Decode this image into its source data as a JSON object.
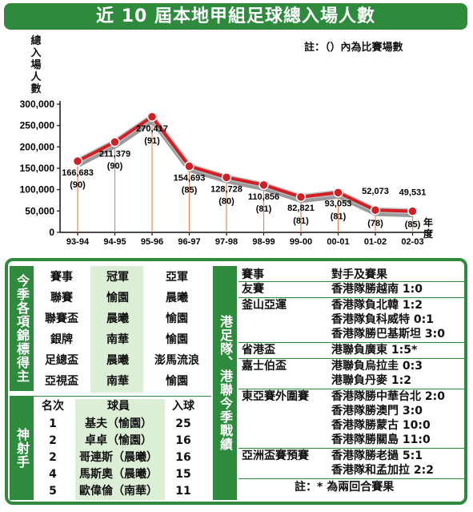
{
  "title": "近 10 屆本地甲組足球總入場人數",
  "chart": {
    "ylabel": "總入場人數",
    "note": "註：（）內為比賽場數",
    "xaxis_label": "年度"
  },
  "chart_data": {
    "type": "line",
    "title": "近 10 屆本地甲組足球總入場人數",
    "ylabel": "總入場人數",
    "xlabel": "年度",
    "ylim": [
      0,
      300000
    ],
    "yticks": [
      "300,000",
      "250,000",
      "200,000",
      "150,000",
      "100,000",
      "50,000",
      "0"
    ],
    "categories": [
      "93-94",
      "94-95",
      "95-96",
      "96-97",
      "97-98",
      "98-99",
      "99-00",
      "00-01",
      "01-02",
      "02-03"
    ],
    "values": [
      166683,
      211379,
      270417,
      154693,
      128728,
      110856,
      82821,
      93053,
      52073,
      49531
    ],
    "value_labels": [
      "166,683",
      "211,379",
      "270,417",
      "154,693",
      "128,728",
      "110,856",
      "82,821",
      "93,053",
      "52,073",
      "49,531"
    ],
    "matches_labels": [
      "(90)",
      "(90)",
      "(91)",
      "(85)",
      "(80)",
      "(81)",
      "(81)",
      "(81)",
      "(78)",
      "(85)"
    ],
    "colors": {
      "line": "#d11f25",
      "shadow": "#9a9a9a",
      "marker": "#d11f25",
      "drop": "#e8895a"
    }
  },
  "honours": {
    "side_label": "今季各項錦標得主",
    "headers": [
      "賽事",
      "冠軍",
      "亞軍"
    ],
    "rows": [
      [
        "聯賽",
        "愉園",
        "晨曦"
      ],
      [
        "聯賽盃",
        "晨曦",
        "愉園"
      ],
      [
        "銀牌",
        "南華",
        "愉園"
      ],
      [
        "足總盃",
        "晨曦",
        "澎馬流浪"
      ],
      [
        "亞視盃",
        "南華",
        "愉園"
      ]
    ]
  },
  "scorers": {
    "side_label": "神射手",
    "headers": [
      "名次",
      "球員",
      "入球"
    ],
    "rows": [
      [
        "1",
        "基夫（愉園）",
        "25"
      ],
      [
        "2",
        "卓卓（愉園）",
        "16"
      ],
      [
        "2",
        "哥連斯（晨曦）",
        "16"
      ],
      [
        "4",
        "馬斯奧（晨曦）",
        "15"
      ],
      [
        "5",
        "歐偉倫（南華）",
        "11"
      ]
    ]
  },
  "results": {
    "side_label": "港足隊、港聯今季戰績",
    "headers": [
      "賽事",
      "對手及賽果"
    ],
    "groups": [
      {
        "event": "友賽",
        "lines": [
          "香港隊勝越南 1:0"
        ]
      },
      {
        "event": "釜山亞運",
        "lines": [
          "香港隊負北韓 1:2",
          "香港隊負科威特 0:1",
          "香港隊勝巴基斯坦 3:0"
        ]
      },
      {
        "event": "省港盃",
        "lines": [
          "港聯負廣東 1:5*"
        ]
      },
      {
        "event": "嘉士伯盃",
        "lines": [
          "港聯負烏拉圭 0:3",
          "港聯負丹麥 1:2"
        ]
      },
      {
        "event": "東亞賽外圍賽",
        "lines": [
          "香港隊勝中華台北 2:0",
          "香港隊勝澳門 3:0",
          "香港隊勝蒙古 10:0",
          "香港隊勝關島 11:0"
        ]
      },
      {
        "event": "亞洲盃賽預賽",
        "lines": [
          "香港隊勝老撾 5:1",
          "香港隊和孟加拉 2:2"
        ]
      }
    ],
    "footnote": "註：* 為兩回合賽果"
  }
}
